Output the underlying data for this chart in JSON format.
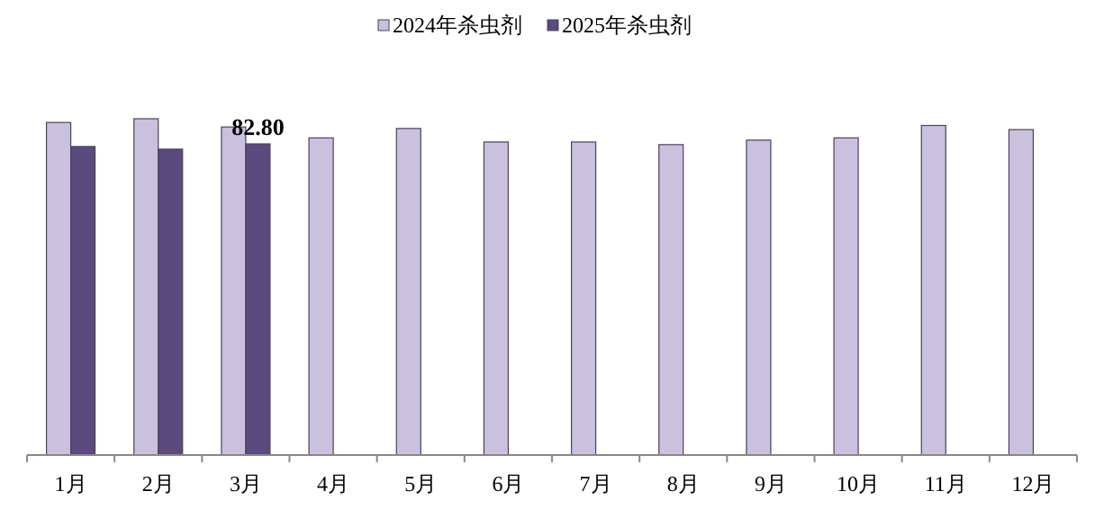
{
  "chart_data": {
    "type": "bar",
    "categories": [
      "1月",
      "2月",
      "3月",
      "4月",
      "5月",
      "6月",
      "7月",
      "8月",
      "9月",
      "10月",
      "11月",
      "12月"
    ],
    "series": [
      {
        "name": "2024年杀虫剂",
        "color": "#c9c1dd",
        "values": [
          88.5,
          89.5,
          87.3,
          84.4,
          86.9,
          83.3,
          83.3,
          82.6,
          83.8,
          84.4,
          87.7,
          86.6
        ]
      },
      {
        "name": "2025年杀虫剂",
        "color": "#5b4a7d",
        "values": [
          82.1,
          81.4,
          82.8,
          null,
          null,
          null,
          null,
          null,
          null,
          null,
          null,
          null
        ],
        "value_labels": [
          null,
          null,
          "82.80",
          null,
          null,
          null,
          null,
          null,
          null,
          null,
          null,
          null
        ]
      }
    ],
    "legend": "top"
  }
}
